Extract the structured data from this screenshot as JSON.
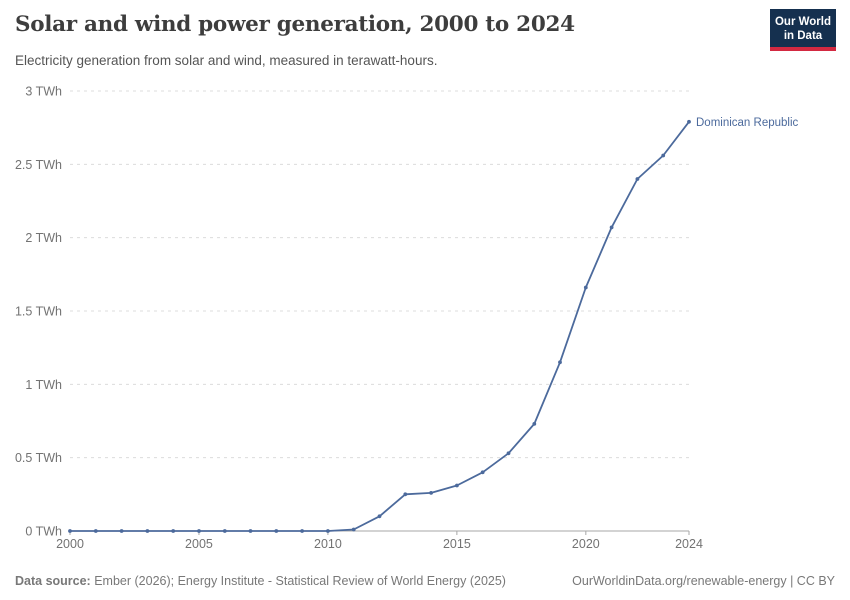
{
  "header": {
    "title": "Solar and wind power generation, 2000 to 2024",
    "subtitle": "Electricity generation from solar and wind, measured in terawatt-hours.",
    "logo": {
      "line1": "Our World",
      "line2": "in Data"
    }
  },
  "footer": {
    "source_label": "Data source:",
    "source_text": "Ember (2026); Energy Institute - Statistical Review of World Energy (2025)",
    "right_text": "OurWorldinData.org/renewable-energy | CC BY"
  },
  "colors": {
    "series": "#4c6a9c",
    "logo_bg": "#15304f",
    "logo_stripe": "#d32941",
    "gridline": "#dcdcdc",
    "axis": "#a7a7a7",
    "tick_text": "#737373"
  },
  "chart_data": {
    "type": "line",
    "title": "Solar and wind power generation, 2000 to 2024",
    "xlabel": "",
    "ylabel": "terawatt-hours",
    "unit": "TWh",
    "xlim": [
      2000,
      2024
    ],
    "ylim": [
      0,
      3
    ],
    "grid": "horizontal-dashed",
    "legend_position": "end-of-line-label",
    "x": [
      2000,
      2001,
      2002,
      2003,
      2004,
      2005,
      2006,
      2007,
      2008,
      2009,
      2010,
      2011,
      2012,
      2013,
      2014,
      2015,
      2016,
      2017,
      2018,
      2019,
      2020,
      2021,
      2022,
      2023,
      2024
    ],
    "series": [
      {
        "name": "Dominican Republic",
        "color": "#4c6a9c",
        "values": [
          0,
          0,
          0,
          0,
          0,
          0,
          0,
          0,
          0,
          0,
          0,
          0.01,
          0.1,
          0.25,
          0.26,
          0.31,
          0.4,
          0.53,
          0.73,
          1.15,
          1.66,
          2.07,
          2.4,
          2.56,
          2.79
        ]
      }
    ],
    "y_ticks": [
      {
        "value": 0,
        "label": "0 TWh"
      },
      {
        "value": 0.5,
        "label": "0.5 TWh"
      },
      {
        "value": 1,
        "label": "1 TWh"
      },
      {
        "value": 1.5,
        "label": "1.5 TWh"
      },
      {
        "value": 2,
        "label": "2 TWh"
      },
      {
        "value": 2.5,
        "label": "2.5 TWh"
      },
      {
        "value": 3,
        "label": "3 TWh"
      }
    ],
    "x_ticks": [
      {
        "value": 2000,
        "label": "2000"
      },
      {
        "value": 2005,
        "label": "2005"
      },
      {
        "value": 2010,
        "label": "2010"
      },
      {
        "value": 2015,
        "label": "2015"
      },
      {
        "value": 2020,
        "label": "2020"
      },
      {
        "value": 2024,
        "label": "2024"
      }
    ]
  }
}
